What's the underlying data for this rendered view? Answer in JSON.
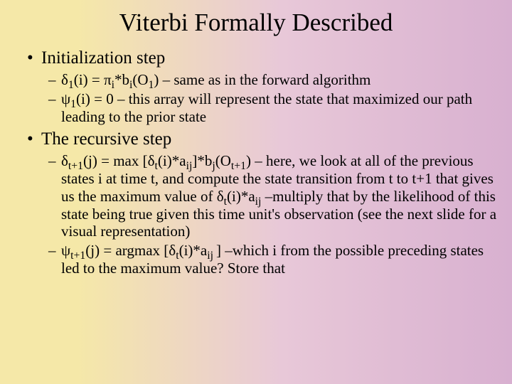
{
  "slide": {
    "title": "Viterbi Formally Described",
    "sections": [
      {
        "heading": "Initialization step",
        "items": [
          "δ<span class=\"sub1\">1</span>(i) = π<span class=\"sub1\">i</span>*b<span class=\"sub1\">i</span>(O<span class=\"sub1\">1</span>) – same as in the forward algorithm",
          "ψ<span class=\"sub1\">1</span>(i) = 0 – this array will represent the state that maximized our path leading to the prior state"
        ]
      },
      {
        "heading": "The recursive step",
        "items": [
          "δ<span class=\"sub1\">t+1</span>(j) = max [δ<span class=\"sub1\">t</span>(i)*a<span class=\"sub1\">ij</span>]*b<span class=\"sub1\">j</span>(O<span class=\"sub1\">t+1</span>) – here, we look at all of the previous states i at time t, and compute the state transition from t to t+1 that gives us the maximum value of δ<span class=\"sub1\">t</span>(i)*a<span class=\"sub1\">ij</span> –multiply that by the likelihood of this state being true given this time unit's observation (see the next slide for a visual representation)",
          "ψ<span class=\"sub1\">t+1</span>(j) = argmax [δ<span class=\"sub1\">t</span>(i)*a<span class=\"sub1\">ij </span>] –which i from the possible preceding states led to the maximum value?  Store that"
        ]
      }
    ],
    "colors": {
      "text": "#000000",
      "bg_left": "#f5e8a8",
      "bg_right": "#d8b0d0"
    },
    "typography": {
      "title_fontsize": 35,
      "heading_fontsize": 25,
      "body_fontsize": 21,
      "font_family": "Times New Roman"
    }
  }
}
